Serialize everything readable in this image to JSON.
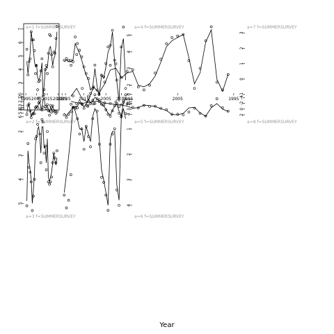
{
  "chart_data": {
    "type": "line",
    "xlabel": "Year",
    "x_ticks": [
      1995,
      2005,
      2015,
      2025
    ],
    "xlim": [
      1993,
      2026
    ],
    "years": [
      1996,
      1997,
      1998,
      1999,
      2000,
      2001,
      2002,
      2003,
      2004,
      2005,
      2006,
      2007,
      2008,
      2009,
      2010,
      2011,
      2012,
      2013,
      2014,
      2015,
      2016,
      2017,
      2018,
      2019,
      2020,
      2021,
      2022,
      2023,
      2024
    ],
    "panels": [
      {
        "title": "a=1   f=SUMMERSURVEY",
        "ylim": [
          1,
          7.4
        ],
        "yticks": [
          1,
          2,
          3,
          4,
          5,
          6,
          7
        ],
        "observed": [
          5.5,
          3.6,
          4.6,
          4.8,
          6.8,
          6.2,
          6.2,
          5.4,
          3.7,
          4.3,
          2.5,
          3.1,
          3.2,
          3.9,
          4.8,
          1.2,
          2.5,
          4.0,
          4.3,
          3.7,
          5.2,
          6.6,
          6.5,
          5.1,
          4.2,
          5.3,
          5.2,
          6.3,
          7.2
        ],
        "fitted": [
          4.6,
          3.7,
          4.4,
          5.2,
          6.8,
          6.2,
          5.5,
          4.6,
          4.2,
          4.4,
          3.4,
          3.2,
          3.4,
          3.8,
          4.5,
          2.0,
          2.8,
          3.9,
          4.2,
          4.1,
          4.9,
          5.6,
          5.7,
          5.0,
          4.3,
          4.8,
          5.0,
          5.8,
          6.8
        ]
      },
      {
        "title": "a=4   f=SUMMERSURVEY",
        "ylim": [
          0.5,
          5.7
        ],
        "yticks": [
          1,
          2,
          3,
          4,
          5
        ],
        "observed": [
          1.8,
          5.5,
          4.3,
          0.7,
          2.3,
          3.5,
          5.3,
          4.4,
          4.3,
          3.3,
          2.5,
          2.6,
          1.0,
          1.7,
          3.2,
          1.8,
          1.5,
          2.4,
          2.7,
          3.1,
          3.7,
          4.1,
          4.5,
          4.9,
          3.4,
          3.5,
          3.5,
          3.6,
          3.5
        ],
        "fitted": [
          2.3,
          4.8,
          4.2,
          1.0,
          2.2,
          3.3,
          5.2,
          4.3,
          4.0,
          3.1,
          2.4,
          2.6,
          1.4,
          1.9,
          3.0,
          1.9,
          1.7,
          2.3,
          2.6,
          3.0,
          3.5,
          3.9,
          4.2,
          4.5,
          3.5,
          3.4,
          3.4,
          3.5,
          3.4
        ]
      },
      {
        "title": "a=7   f=SUMMERSURVEY",
        "ylim": [
          -2.0,
          3.6
        ],
        "yticks": [
          -1,
          0,
          1,
          2,
          3
        ],
        "observed": [
          0.3,
          -0.7,
          -0.2,
          3.4,
          2.5,
          0.7,
          -0.6,
          1.2,
          2.9,
          2.8,
          2.7,
          2.3,
          1.3,
          0.4,
          -0.4,
          -0.7,
          -0.5,
          0.6,
          0.5,
          0.1,
          1.0,
          0.9,
          -0.2,
          -1.0,
          -0.5,
          -1.7,
          -0.6,
          1.6,
          0.9
        ],
        "fitted": [
          0.3,
          -0.8,
          0.0,
          3.2,
          2.4,
          0.4,
          -0.3,
          1.4,
          2.9,
          2.7,
          2.5,
          2.1,
          1.1,
          0.2,
          -0.3,
          -0.5,
          -0.4,
          0.5,
          0.4,
          0.1,
          0.7,
          0.6,
          -0.3,
          -0.9,
          -0.5,
          -1.5,
          -1.3,
          -0.6,
          -1.1
        ]
      },
      {
        "title": "a=2   f=SUMMERSURVEY",
        "ylim": [
          -0.2,
          6.4
        ],
        "yticks": [
          0,
          1,
          2,
          3,
          4,
          5,
          6
        ],
        "observed": [
          5.4,
          3.0,
          2.6,
          4.5,
          6.2,
          5.4,
          5.1,
          5.2,
          3.5,
          3.3,
          3.6,
          2.3,
          1.9,
          3.9,
          4.2,
          0.6,
          0.1,
          3.3,
          3.8,
          2.8,
          4.4,
          5.6,
          3.0,
          4.8,
          3.1,
          4.4,
          4.6,
          5.1,
          4.7
        ],
        "fitted": [
          5.0,
          3.2,
          2.7,
          4.4,
          5.9,
          5.3,
          4.8,
          4.6,
          3.6,
          3.4,
          3.3,
          2.5,
          2.1,
          3.5,
          3.9,
          1.3,
          1.1,
          2.9,
          3.3,
          3.0,
          4.0,
          4.9,
          3.3,
          4.3,
          3.2,
          4.1,
          4.3,
          4.6,
          4.5
        ]
      },
      {
        "title": "a=5   f=SUMMERSURVEY",
        "ylim": [
          -0.2,
          4.8
        ],
        "yticks": [
          0,
          1,
          2,
          3,
          4
        ],
        "observed": [
          0.1,
          1.6,
          4.5,
          3.8,
          1.9,
          2.3,
          3.3,
          4.4,
          4.0,
          3.1,
          2.2,
          2.0,
          1.1,
          0.9,
          0.1,
          1.2,
          1.9,
          0.4,
          2.2,
          2.8,
          1.9,
          1.5,
          2.7,
          2.6,
          2.6,
          3.5,
          4.0,
          4.6,
          4.1
        ],
        "fitted": [
          0.8,
          1.8,
          4.3,
          3.4,
          1.9,
          2.4,
          3.2,
          4.2,
          3.8,
          3.0,
          2.3,
          2.0,
          1.3,
          1.0,
          0.6,
          1.3,
          1.8,
          0.9,
          2.0,
          2.5,
          2.0,
          1.7,
          2.4,
          2.5,
          2.5,
          3.2,
          3.7,
          4.3,
          3.8
        ]
      },
      {
        "title": "a=8   f=SUMMERSURVEY",
        "ylim": [
          -5.5,
          3.2
        ],
        "yticks": [
          -4,
          -2,
          0,
          2
        ],
        "observed": [
          0.7,
          -0.5,
          -3.6,
          -1.2,
          2.4,
          1.5,
          -0.3,
          1.0,
          2.0,
          1.8,
          1.8,
          0.2,
          -0.3,
          -1.0,
          -0.9,
          -1.3,
          -0.4,
          -0.6,
          -1.8,
          -1.5,
          -2.5,
          -2.0,
          -2.2,
          -5.3,
          -1.8,
          -0.9,
          -1.6,
          -1.9,
          -1.7
        ],
        "fitted": [
          0.8,
          0.0,
          -1.9,
          -0.5,
          2.5,
          1.3,
          -0.6,
          -0.4,
          1.5,
          2.0,
          1.9,
          0.5,
          -0.1,
          -0.9,
          -1.2,
          -1.4,
          -0.5,
          -0.3,
          -1.0,
          -1.5,
          -1.6,
          -1.8,
          -2.1,
          -2.8,
          -2.6,
          -2.3,
          -2.0,
          -2.2,
          -2.7
        ]
      },
      {
        "title": "a=3   f=SUMMERSURVEY",
        "ylim": [
          0.4,
          5.4
        ],
        "yticks": [
          1,
          2,
          3,
          4,
          5
        ],
        "observed": [
          5.1,
          2.5,
          3.5,
          3.7,
          4.1,
          5.3,
          4.7,
          4.0,
          2.3,
          2.2,
          1.7,
          0.6,
          2.1,
          3.3,
          1.5,
          1.6,
          2.9,
          2.6,
          3.6,
          2.0,
          4.1,
          4.2,
          4.1,
          3.9,
          3.3,
          2.9,
          3.1,
          3.3,
          2.8
        ],
        "fitted": [
          4.9,
          2.8,
          3.3,
          3.6,
          4.0,
          5.0,
          4.5,
          3.8,
          2.5,
          2.3,
          1.9,
          1.8,
          2.2,
          2.9,
          1.8,
          1.8,
          2.7,
          2.6,
          3.3,
          2.3,
          3.9,
          4.1,
          3.9,
          3.7,
          3.3,
          2.9,
          3.2,
          3.4,
          3.1
        ]
      },
      {
        "title": "a=6   f=SUMMERSURVEY",
        "ylim": [
          -0.4,
          4.3
        ],
        "yticks": [
          0,
          1,
          2,
          3,
          4
        ],
        "observed": [
          0.4,
          -0.1,
          0.5,
          4.0,
          3.4,
          1.0,
          1.2,
          1.6,
          4.2,
          3.6,
          3.1,
          2.9,
          1.6,
          0.3,
          0.0,
          0.6,
          1.7,
          1.3,
          0.9,
          1.8,
          1.0,
          1.2,
          0.6,
          0.2,
          -0.3,
          2.8,
          3.8,
          4.1,
          3.6
        ],
        "fitted": [
          0.6,
          0.2,
          0.6,
          3.8,
          3.2,
          1.1,
          1.1,
          1.4,
          4.0,
          3.5,
          3.0,
          2.6,
          1.4,
          0.4,
          0.2,
          0.5,
          1.5,
          1.2,
          0.9,
          1.5,
          1.0,
          1.0,
          0.6,
          0.3,
          0.1,
          1.2,
          2.1,
          2.8,
          3.5
        ]
      }
    ]
  }
}
